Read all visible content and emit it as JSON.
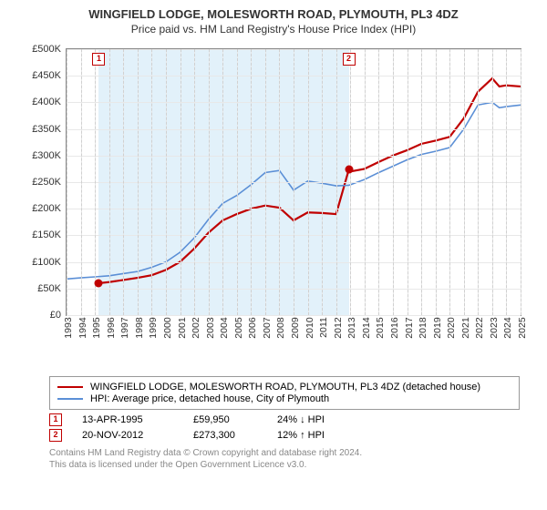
{
  "header": {
    "title": "WINGFIELD LODGE, MOLESWORTH ROAD, PLYMOUTH, PL3 4DZ",
    "subtitle": "Price paid vs. HM Land Registry's House Price Index (HPI)"
  },
  "chart": {
    "type": "line",
    "background_color": "#ffffff",
    "grid_color": "#e8e8e8",
    "border_color": "#888888",
    "y_axis": {
      "min": 0,
      "max": 500000,
      "tick_step": 50000,
      "ticks": [
        "£0",
        "£50K",
        "£100K",
        "£150K",
        "£200K",
        "£250K",
        "£300K",
        "£350K",
        "£400K",
        "£450K",
        "£500K"
      ]
    },
    "x_axis": {
      "years": [
        1993,
        1994,
        1995,
        1996,
        1997,
        1998,
        1999,
        2000,
        2001,
        2002,
        2003,
        2004,
        2005,
        2006,
        2007,
        2008,
        2009,
        2010,
        2011,
        2012,
        2013,
        2014,
        2015,
        2016,
        2017,
        2018,
        2019,
        2020,
        2021,
        2022,
        2023,
        2024,
        2025
      ]
    },
    "shaded_region": {
      "from_year": 1995.28,
      "to_year": 2012.89
    },
    "series": [
      {
        "name": "property",
        "color": "#c00000",
        "width": 2.2,
        "points": [
          [
            1995.28,
            59950
          ],
          [
            1996,
            62000
          ],
          [
            1997,
            66000
          ],
          [
            1998,
            70000
          ],
          [
            1999,
            75000
          ],
          [
            2000,
            85000
          ],
          [
            2001,
            100000
          ],
          [
            2002,
            125000
          ],
          [
            2003,
            155000
          ],
          [
            2004,
            178000
          ],
          [
            2005,
            190000
          ],
          [
            2006,
            200000
          ],
          [
            2007,
            206000
          ],
          [
            2008,
            202000
          ],
          [
            2009,
            178000
          ],
          [
            2010,
            193000
          ],
          [
            2011,
            192000
          ],
          [
            2012,
            190000
          ],
          [
            2012.89,
            273300
          ],
          [
            2013,
            270000
          ],
          [
            2014,
            275000
          ],
          [
            2015,
            288000
          ],
          [
            2016,
            300000
          ],
          [
            2017,
            310000
          ],
          [
            2018,
            322000
          ],
          [
            2019,
            328000
          ],
          [
            2020,
            335000
          ],
          [
            2021,
            370000
          ],
          [
            2022,
            420000
          ],
          [
            2023,
            445000
          ],
          [
            2023.5,
            430000
          ],
          [
            2024,
            432000
          ],
          [
            2025,
            430000
          ]
        ]
      },
      {
        "name": "hpi",
        "color": "#5b8fd6",
        "width": 1.6,
        "points": [
          [
            1993,
            68000
          ],
          [
            1994,
            70000
          ],
          [
            1995,
            72000
          ],
          [
            1996,
            74000
          ],
          [
            1997,
            78000
          ],
          [
            1998,
            82000
          ],
          [
            1999,
            90000
          ],
          [
            2000,
            100000
          ],
          [
            2001,
            118000
          ],
          [
            2002,
            145000
          ],
          [
            2003,
            180000
          ],
          [
            2004,
            210000
          ],
          [
            2005,
            225000
          ],
          [
            2006,
            245000
          ],
          [
            2007,
            268000
          ],
          [
            2008,
            272000
          ],
          [
            2009,
            235000
          ],
          [
            2010,
            252000
          ],
          [
            2011,
            248000
          ],
          [
            2012,
            243000
          ],
          [
            2012.89,
            244000
          ],
          [
            2013,
            245000
          ],
          [
            2014,
            255000
          ],
          [
            2015,
            268000
          ],
          [
            2016,
            280000
          ],
          [
            2017,
            292000
          ],
          [
            2018,
            302000
          ],
          [
            2019,
            308000
          ],
          [
            2020,
            315000
          ],
          [
            2021,
            350000
          ],
          [
            2022,
            395000
          ],
          [
            2023,
            400000
          ],
          [
            2023.5,
            390000
          ],
          [
            2024,
            392000
          ],
          [
            2025,
            395000
          ]
        ]
      }
    ],
    "markers": [
      {
        "idx": "1",
        "year": 1995.28,
        "value": 59950
      },
      {
        "idx": "2",
        "year": 2012.89,
        "value": 273300
      }
    ]
  },
  "legend": {
    "items": [
      {
        "color": "#c00000",
        "label": "WINGFIELD LODGE, MOLESWORTH ROAD, PLYMOUTH, PL3 4DZ (detached house)"
      },
      {
        "color": "#5b8fd6",
        "label": "HPI: Average price, detached house, City of Plymouth"
      }
    ]
  },
  "sales": [
    {
      "idx": "1",
      "date": "13-APR-1995",
      "price": "£59,950",
      "delta": "24% ↓ HPI"
    },
    {
      "idx": "2",
      "date": "20-NOV-2012",
      "price": "£273,300",
      "delta": "12% ↑ HPI"
    }
  ],
  "footer": {
    "line1": "Contains HM Land Registry data © Crown copyright and database right 2024.",
    "line2": "This data is licensed under the Open Government Licence v3.0."
  }
}
